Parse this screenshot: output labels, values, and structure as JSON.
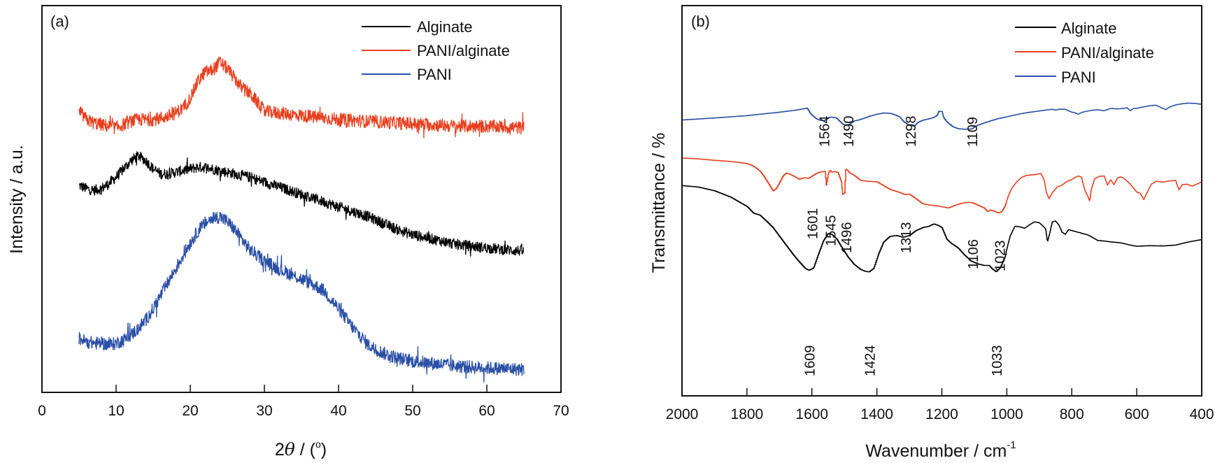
{
  "chart_data": [
    {
      "panel_label": "(a)",
      "type": "line",
      "title": "",
      "xlabel_prefix": "2",
      "xlabel_symbol": "θ",
      "xlabel_suffix": " / (",
      "xlabel_degree": "o",
      "xlabel_close": ")",
      "ylabel": "Intensity / a.u.",
      "xlim": [
        0,
        70
      ],
      "x_ticks": [
        0,
        10,
        20,
        30,
        40,
        50,
        60,
        70
      ],
      "x_tick_labels": [
        "0",
        "10",
        "20",
        "30",
        "40",
        "50",
        "60",
        "70"
      ],
      "y_ticks_shown": false,
      "grid": false,
      "legend_position": "top-right",
      "ylim": [
        0,
        100
      ],
      "series": [
        {
          "name": "Alginate",
          "color": "#000000",
          "noise": 1.6,
          "x": [
            5,
            6,
            7,
            8,
            9,
            10,
            11,
            12,
            13,
            14,
            15,
            16,
            17,
            18,
            19,
            20,
            21,
            22,
            23,
            24,
            25,
            26,
            28,
            30,
            32,
            34,
            36,
            38,
            40,
            42,
            44,
            46,
            48,
            50,
            52,
            54,
            56,
            58,
            60,
            62,
            65
          ],
          "y": [
            58.5,
            57.5,
            57,
            57.5,
            59,
            61,
            63.5,
            66,
            67.5,
            66,
            63.5,
            62,
            62,
            62.5,
            63,
            63.5,
            64,
            64,
            63.5,
            63,
            62.5,
            62,
            61,
            59.5,
            58,
            56.5,
            55,
            53.5,
            52,
            50.5,
            49,
            47,
            45,
            43.5,
            42.5,
            41.5,
            40.5,
            40,
            39.5,
            39,
            38.5
          ]
        },
        {
          "name": "PANI/alginate",
          "color": "#e8401f",
          "noise": 2.0,
          "x": [
            5,
            6,
            7,
            8,
            9,
            10,
            11,
            12,
            13,
            14,
            15,
            16,
            17,
            18,
            19,
            20,
            21,
            22,
            23,
            24,
            25,
            26,
            27,
            28,
            29,
            30,
            32,
            34,
            36,
            38,
            40,
            44,
            48,
            52,
            56,
            60,
            65
          ],
          "y": [
            81,
            78.5,
            77.5,
            77,
            76.5,
            76,
            77,
            78,
            78.5,
            78.5,
            78.5,
            79,
            79.5,
            80.5,
            82,
            85,
            90,
            93,
            93.5,
            96,
            94,
            91,
            88,
            86.5,
            84,
            81,
            80.5,
            80,
            79.5,
            79,
            78.5,
            78,
            77.5,
            77,
            76.5,
            76.5,
            76
          ]
        },
        {
          "name": "PANI",
          "color": "#2a4fa6",
          "noise": 2.0,
          "x": [
            5,
            6,
            7,
            8,
            9,
            10,
            11,
            12,
            13,
            14,
            15,
            16,
            17,
            18,
            19,
            20,
            21,
            22,
            23,
            24,
            25,
            26,
            27,
            28,
            30,
            32,
            34,
            36,
            38,
            40,
            42,
            44,
            46,
            48,
            50,
            52,
            54,
            56,
            58,
            60,
            62,
            65
          ],
          "y": [
            12,
            11,
            10.5,
            10.5,
            10,
            10.5,
            11.5,
            13,
            15,
            17.5,
            21,
            25,
            29,
            33,
            37,
            41,
            44.5,
            47,
            48.5,
            49,
            47.5,
            45,
            42,
            39,
            35.5,
            33,
            31,
            29,
            26.5,
            21,
            15,
            10,
            7.5,
            6,
            5,
            4.5,
            4,
            3.5,
            3.2,
            3,
            2.8,
            2.5
          ]
        }
      ]
    },
    {
      "panel_label": "(b)",
      "type": "line",
      "title": "",
      "xlabel": "Wavenumber / cm",
      "xlabel_superscript": "-1",
      "ylabel": "Transmittance / %",
      "xlim": [
        2000,
        400
      ],
      "x_ticks": [
        2000,
        1800,
        1600,
        1400,
        1200,
        1000,
        800,
        600,
        400
      ],
      "x_tick_labels": [
        "2000",
        "1800",
        "1600",
        "1400",
        "1200",
        "1000",
        "800",
        "600",
        "400"
      ],
      "y_ticks_shown": false,
      "grid": false,
      "legend_position": "top-right",
      "ylim": [
        0,
        100
      ],
      "series": [
        {
          "name": "Alginate",
          "color": "#000000",
          "x": [
            2000,
            1950,
            1900,
            1850,
            1800,
            1780,
            1760,
            1740,
            1720,
            1700,
            1680,
            1660,
            1640,
            1620,
            1609,
            1595,
            1580,
            1565,
            1550,
            1540,
            1525,
            1510,
            1490,
            1470,
            1450,
            1435,
            1424,
            1410,
            1395,
            1380,
            1360,
            1340,
            1320,
            1300,
            1280,
            1260,
            1240,
            1225,
            1210,
            1200,
            1185,
            1170,
            1150,
            1130,
            1110,
            1090,
            1070,
            1055,
            1045,
            1033,
            1020,
            1005,
            990,
            975,
            960,
            945,
            930,
            915,
            900,
            890,
            880,
            875,
            868,
            860,
            850,
            840,
            830,
            820,
            810,
            790,
            770,
            750,
            720,
            700,
            680,
            650,
            620,
            600,
            560,
            520,
            480,
            440,
            400
          ],
          "y": [
            71,
            70.5,
            69.2,
            67,
            63.8,
            61.5,
            60.8,
            58.7,
            56.5,
            53.5,
            50.5,
            47.5,
            44.8,
            42.4,
            41.8,
            42.7,
            47.5,
            52,
            54.5,
            54.2,
            52.8,
            50,
            46.5,
            43.8,
            42.1,
            41.4,
            41.3,
            42.5,
            47.5,
            51.5,
            53.5,
            53.8,
            53.2,
            53.8,
            55.5,
            56.5,
            57,
            57.8,
            57.2,
            56.5,
            52.5,
            51,
            49.5,
            47,
            45,
            44,
            43.5,
            43.5,
            42.3,
            41.3,
            42.8,
            46.8,
            53.5,
            57,
            56.8,
            56.3,
            57.5,
            58.5,
            58.2,
            57.2,
            56,
            51.5,
            54.5,
            58.5,
            58.8,
            57.5,
            55,
            54.2,
            55.8,
            55.2,
            54.6,
            54,
            52.1,
            51.9,
            51.6,
            51.3,
            50.5,
            50.1,
            50.3,
            50.2,
            50.5,
            51.6,
            52.4
          ]
        },
        {
          "name": "PANI/alginate",
          "color": "#e8401f",
          "x": [
            2000,
            1950,
            1900,
            1850,
            1800,
            1780,
            1760,
            1750,
            1740,
            1730,
            1720,
            1710,
            1700,
            1690,
            1680,
            1670,
            1655,
            1640,
            1625,
            1610,
            1601,
            1590,
            1575,
            1560,
            1556,
            1550,
            1545,
            1540,
            1530,
            1520,
            1510,
            1506,
            1500,
            1496,
            1492,
            1485,
            1470,
            1450,
            1430,
            1400,
            1380,
            1360,
            1340,
            1320,
            1313,
            1300,
            1280,
            1260,
            1240,
            1220,
            1200,
            1180,
            1160,
            1140,
            1120,
            1106,
            1090,
            1070,
            1060,
            1050,
            1040,
            1030,
            1023,
            1015,
            1005,
            995,
            985,
            970,
            955,
            940,
            925,
            910,
            895,
            885,
            878,
            870,
            860,
            845,
            830,
            815,
            800,
            790,
            780,
            770,
            760,
            750,
            745,
            740,
            730,
            715,
            700,
            690,
            680,
            670,
            660,
            650,
            640,
            620,
            600,
            590,
            585,
            578,
            570,
            555,
            540,
            520,
            500,
            480,
            475,
            470,
            460,
            445,
            430,
            415,
            400
          ],
          "y": [
            80.5,
            80.2,
            79.7,
            79.3,
            78.6,
            77.7,
            76,
            74.5,
            72.8,
            71,
            69.2,
            70,
            72,
            74.2,
            75.3,
            75,
            74.2,
            73.2,
            73.7,
            73.5,
            74.2,
            75,
            75.7,
            75.9,
            71.2,
            75,
            76.3,
            75.7,
            75.8,
            75.5,
            72.3,
            68,
            68.5,
            76.6,
            76.4,
            75.5,
            74.5,
            72.8,
            72.5,
            72.3,
            71,
            69.7,
            69,
            68.2,
            67.9,
            68,
            66.5,
            64.8,
            64.3,
            64.1,
            63.7,
            63.3,
            64.2,
            64.9,
            65.2,
            65.1,
            64.3,
            63.3,
            62.1,
            62.6,
            62.2,
            61.7,
            61.6,
            62.2,
            64.2,
            67.5,
            70,
            72.2,
            73.8,
            74.5,
            74.7,
            74.8,
            75.2,
            73,
            68.6,
            66.5,
            68.5,
            70.5,
            71.2,
            72.4,
            73.1,
            73.8,
            74.3,
            73.9,
            69.5,
            67.2,
            65.5,
            69.5,
            73.3,
            74.2,
            74.3,
            71.2,
            73,
            71.3,
            73.5,
            74,
            73.6,
            71.5,
            68.8,
            68.4,
            67.5,
            66.2,
            68.2,
            71.5,
            72.5,
            72.2,
            72.6,
            72.8,
            71,
            69.5,
            71.3,
            71.5,
            70.8,
            71.5,
            72.3
          ]
        },
        {
          "name": "PANI",
          "color": "#2a4fa6",
          "x": [
            2000,
            1900,
            1800,
            1700,
            1650,
            1620,
            1615,
            1605,
            1595,
            1585,
            1575,
            1564,
            1555,
            1545,
            1535,
            1525,
            1515,
            1505,
            1490,
            1480,
            1470,
            1460,
            1440,
            1420,
            1400,
            1380,
            1360,
            1345,
            1330,
            1320,
            1310,
            1298,
            1285,
            1275,
            1260,
            1240,
            1225,
            1215,
            1210,
            1200,
            1195,
            1185,
            1175,
            1165,
            1150,
            1130,
            1109,
            1100,
            1090,
            1070,
            1050,
            1030,
            1000,
            980,
            960,
            940,
            920,
            900,
            880,
            860,
            850,
            840,
            820,
            800,
            790,
            780,
            770,
            750,
            735,
            720,
            700,
            680,
            660,
            640,
            630,
            620,
            610,
            600,
            580,
            560,
            540,
            520,
            510,
            500,
            490,
            480,
            460,
            440,
            420,
            400
          ],
          "y": [
            93.6,
            94.3,
            95.1,
            96.3,
            97,
            97.6,
            97.7,
            95.8,
            94.8,
            93.9,
            93.5,
            93.3,
            93.9,
            94.6,
            94.5,
            94.3,
            93.2,
            92.1,
            91.7,
            92.5,
            93.3,
            93.5,
            94.2,
            95,
            95.6,
            96,
            95.9,
            95.4,
            94.6,
            93.3,
            92.4,
            91.7,
            91.5,
            92.7,
            93.5,
            94,
            94.5,
            95.2,
            96.6,
            96.5,
            94.4,
            93,
            92,
            91.2,
            90.6,
            90.4,
            90.5,
            91.2,
            91.8,
            92.6,
            93.3,
            94,
            94.7,
            95.2,
            95.7,
            96.1,
            96.4,
            96.7,
            97,
            97.3,
            97,
            97.3,
            97.3,
            96.3,
            96.1,
            95.6,
            96.2,
            96.7,
            97,
            97.1,
            96.8,
            97.6,
            97.4,
            97.6,
            97.8,
            96.8,
            97.6,
            97.6,
            98.1,
            98.5,
            98.7,
            97.6,
            97.2,
            98,
            98.4,
            98.8,
            99.2,
            99.4,
            99.3,
            99
          ]
        }
      ],
      "annotations": [
        {
          "series": "PANI",
          "label": "1564",
          "x": 1564
        },
        {
          "series": "PANI",
          "label": "1490",
          "x": 1490
        },
        {
          "series": "PANI",
          "label": "1298",
          "x": 1298
        },
        {
          "series": "PANI",
          "label": "1109",
          "x": 1109
        },
        {
          "series": "PANI/alginate",
          "label": "1601",
          "x": 1601
        },
        {
          "series": "PANI/alginate",
          "label": "1545",
          "x": 1545
        },
        {
          "series": "PANI/alginate",
          "label": "1496",
          "x": 1496
        },
        {
          "series": "PANI/alginate",
          "label": "1313",
          "x": 1313
        },
        {
          "series": "PANI/alginate",
          "label": "1106",
          "x": 1106
        },
        {
          "series": "PANI/alginate",
          "label": "1023",
          "x": 1023
        },
        {
          "series": "Alginate",
          "label": "1609",
          "x": 1609
        },
        {
          "series": "Alginate",
          "label": "1424",
          "x": 1424
        },
        {
          "series": "Alginate",
          "label": "1033",
          "x": 1033
        }
      ]
    }
  ]
}
